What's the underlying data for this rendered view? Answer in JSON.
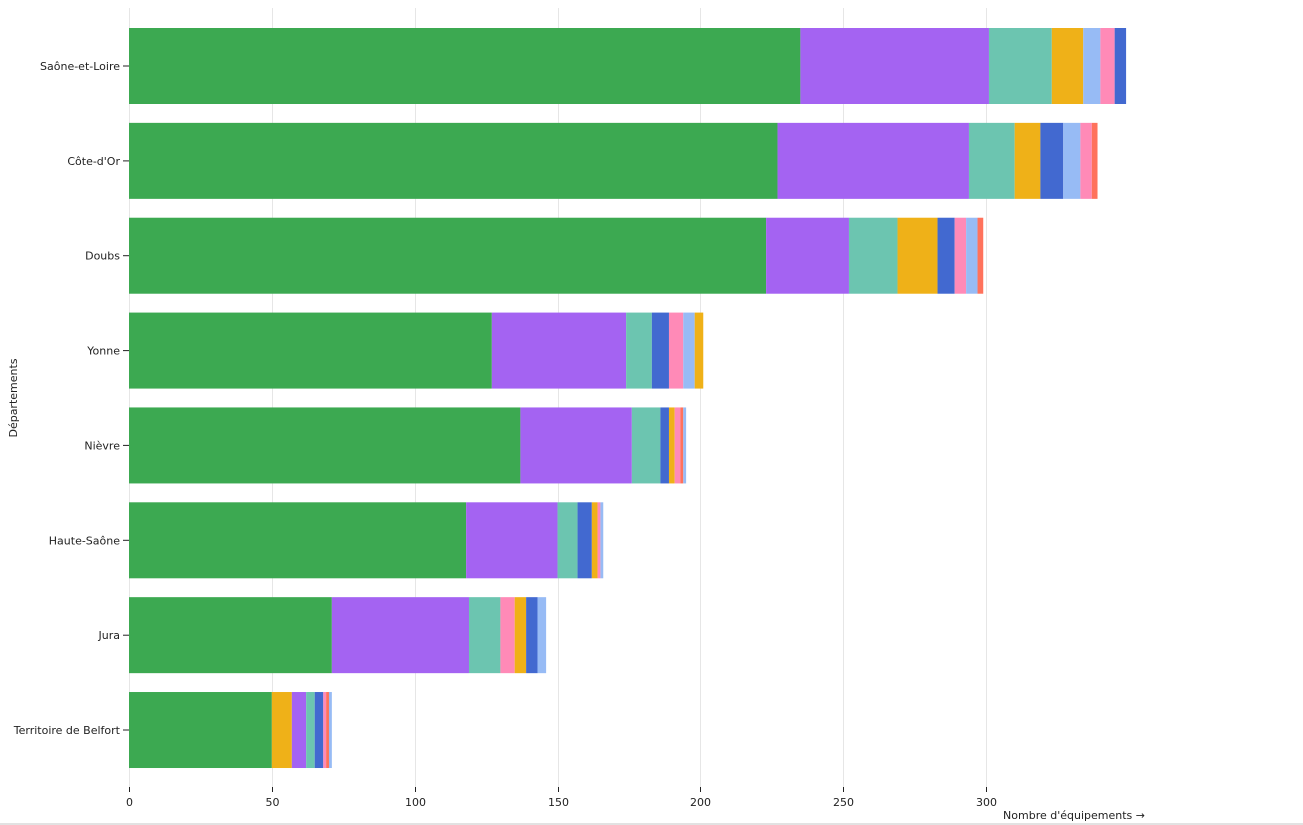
{
  "chart_data": {
    "type": "bar",
    "orientation": "horizontal",
    "stacked": true,
    "title": "",
    "xlabel": "Nombre d'équipements →",
    "ylabel": "Départements",
    "xlim": [
      0,
      350
    ],
    "x_ticks": [
      0,
      50,
      100,
      150,
      200,
      250,
      300
    ],
    "grid": true,
    "categories": [
      "Saône-et-Loire",
      "Côte-d'Or",
      "Doubs",
      "Yonne",
      "Nièvre",
      "Haute-Saône",
      "Jura",
      "Territoire de Belfort"
    ],
    "bars": [
      {
        "category": "Saône-et-Loire",
        "segments": [
          {
            "color": "#3ca951",
            "value": 235
          },
          {
            "color": "#a463f2",
            "value": 66
          },
          {
            "color": "#6cc5b0",
            "value": 22
          },
          {
            "color": "#efb118",
            "value": 11
          },
          {
            "color": "#97bbf5",
            "value": 6
          },
          {
            "color": "#ff8ab7",
            "value": 5
          },
          {
            "color": "#4269d0",
            "value": 4
          }
        ]
      },
      {
        "category": "Côte-d'Or",
        "segments": [
          {
            "color": "#3ca951",
            "value": 227
          },
          {
            "color": "#a463f2",
            "value": 67
          },
          {
            "color": "#6cc5b0",
            "value": 16
          },
          {
            "color": "#efb118",
            "value": 9
          },
          {
            "color": "#4269d0",
            "value": 8
          },
          {
            "color": "#97bbf5",
            "value": 6
          },
          {
            "color": "#ff8ab7",
            "value": 4
          },
          {
            "color": "#ff725c",
            "value": 2
          }
        ]
      },
      {
        "category": "Doubs",
        "segments": [
          {
            "color": "#3ca951",
            "value": 223
          },
          {
            "color": "#a463f2",
            "value": 29
          },
          {
            "color": "#6cc5b0",
            "value": 17
          },
          {
            "color": "#efb118",
            "value": 14
          },
          {
            "color": "#4269d0",
            "value": 6
          },
          {
            "color": "#ff8ab7",
            "value": 4
          },
          {
            "color": "#97bbf5",
            "value": 4
          },
          {
            "color": "#ff725c",
            "value": 2
          }
        ]
      },
      {
        "category": "Yonne",
        "segments": [
          {
            "color": "#3ca951",
            "value": 127
          },
          {
            "color": "#a463f2",
            "value": 47
          },
          {
            "color": "#6cc5b0",
            "value": 9
          },
          {
            "color": "#4269d0",
            "value": 6
          },
          {
            "color": "#ff8ab7",
            "value": 5
          },
          {
            "color": "#97bbf5",
            "value": 4
          },
          {
            "color": "#efb118",
            "value": 3
          }
        ]
      },
      {
        "category": "Nièvre",
        "segments": [
          {
            "color": "#3ca951",
            "value": 137
          },
          {
            "color": "#a463f2",
            "value": 39
          },
          {
            "color": "#6cc5b0",
            "value": 10
          },
          {
            "color": "#4269d0",
            "value": 3
          },
          {
            "color": "#efb118",
            "value": 2
          },
          {
            "color": "#ff8ab7",
            "value": 2
          },
          {
            "color": "#ff725c",
            "value": 1
          },
          {
            "color": "#97bbf5",
            "value": 1
          }
        ]
      },
      {
        "category": "Haute-Saône",
        "segments": [
          {
            "color": "#3ca951",
            "value": 118
          },
          {
            "color": "#a463f2",
            "value": 32
          },
          {
            "color": "#6cc5b0",
            "value": 7
          },
          {
            "color": "#4269d0",
            "value": 5
          },
          {
            "color": "#efb118",
            "value": 2
          },
          {
            "color": "#ff8ab7",
            "value": 1
          },
          {
            "color": "#97bbf5",
            "value": 1
          }
        ]
      },
      {
        "category": "Jura",
        "segments": [
          {
            "color": "#3ca951",
            "value": 71
          },
          {
            "color": "#a463f2",
            "value": 48
          },
          {
            "color": "#6cc5b0",
            "value": 11
          },
          {
            "color": "#ff8ab7",
            "value": 5
          },
          {
            "color": "#efb118",
            "value": 4
          },
          {
            "color": "#4269d0",
            "value": 4
          },
          {
            "color": "#97bbf5",
            "value": 3
          }
        ]
      },
      {
        "category": "Territoire de Belfort",
        "segments": [
          {
            "color": "#3ca951",
            "value": 50
          },
          {
            "color": "#efb118",
            "value": 7
          },
          {
            "color": "#a463f2",
            "value": 5
          },
          {
            "color": "#6cc5b0",
            "value": 3
          },
          {
            "color": "#4269d0",
            "value": 3
          },
          {
            "color": "#ff8ab7",
            "value": 1
          },
          {
            "color": "#ff725c",
            "value": 1
          },
          {
            "color": "#97bbf5",
            "value": 1
          }
        ]
      }
    ]
  }
}
